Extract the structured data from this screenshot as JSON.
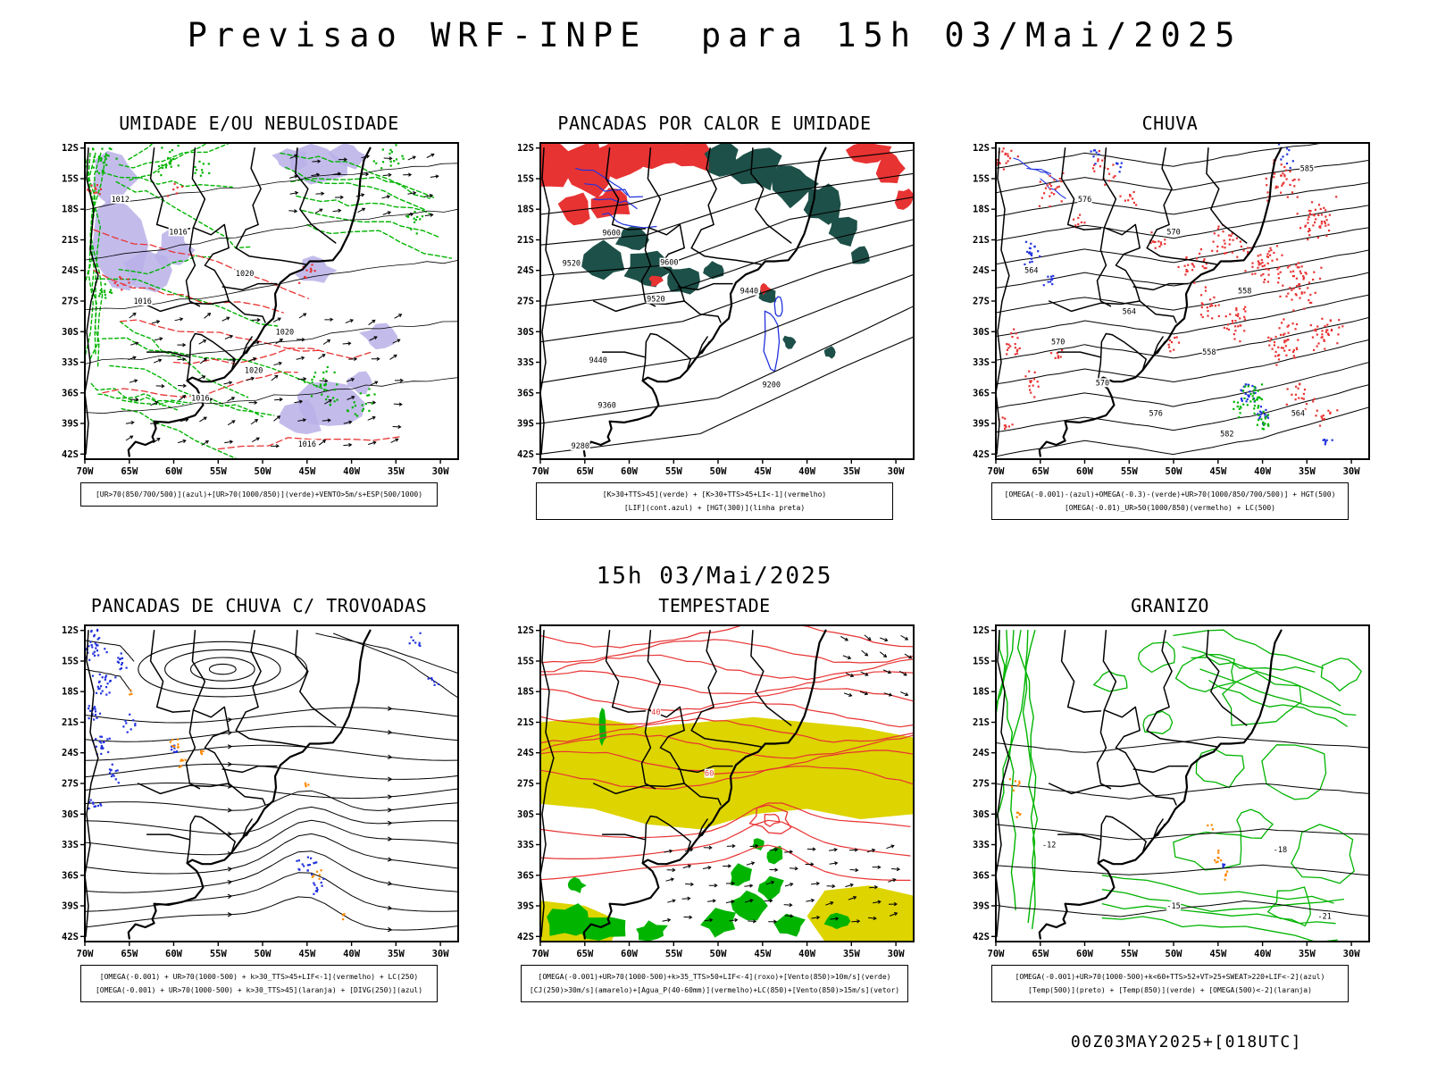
{
  "page": {
    "title": "Previsao WRF-INPE  para 15h 03/Mai/2025",
    "mid_caption": "15h 03/Mai/2025",
    "footer": "00Z03MAY2025+[018UTC]"
  },
  "axes": {
    "lat_labels": [
      "12S",
      "15S",
      "18S",
      "21S",
      "24S",
      "27S",
      "30S",
      "33S",
      "36S",
      "39S",
      "42S"
    ],
    "lon_labels": [
      "70W",
      "65W",
      "60W",
      "55W",
      "50W",
      "45W",
      "40W",
      "35W",
      "30W"
    ]
  },
  "palette": {
    "green": "#00b400",
    "red": "#e83333",
    "blue": "#2233dd",
    "teal": "#1d5048",
    "yellow": "#ddd400",
    "orange": "#ff8800",
    "lavender": "#b9b0e8",
    "black": "#000000"
  },
  "panels": [
    {
      "id": "umidade",
      "title": "UMIDADE E/OU NEBULOSIDADE",
      "caption_lines": [
        "[UR>70(850/700/500)](azul)+[UR>70(1000/850)](verde)+VENTO>5m/s+ESP(500/1000)"
      ],
      "contour_labels": [
        "1012",
        "1016",
        "1016",
        "1020",
        "1020",
        "1020",
        "1016",
        "1016"
      ]
    },
    {
      "id": "pancadas-calor",
      "title": "PANCADAS POR CALOR E UMIDADE",
      "caption_lines": [
        "[K>30+TTS>45](verde) + [K>30+TTS>45+LI<-1](vermelho)",
        "[LIF](cont.azul) + [HGT(300)](linha preta)"
      ],
      "contour_labels": [
        "9600",
        "9600",
        "9520",
        "9520",
        "9440",
        "9440",
        "9360",
        "9280",
        "9200"
      ]
    },
    {
      "id": "chuva",
      "title": "CHUVA",
      "caption_lines": [
        "[OMEGA(-0.001)-(azul)+OMEGA(-0.3)-(verde)+UR>70(1000/850/700/500)] + HGT(500)",
        "[OMEGA(-0.01)_UR>50(1000/850)(vermelho) + LC(500)"
      ],
      "contour_labels": [
        "585",
        "576",
        "570",
        "564",
        "558",
        "564",
        "570",
        "558",
        "570",
        "576",
        "582",
        "564"
      ]
    },
    {
      "id": "trovoadas",
      "title": "PANCADAS DE CHUVA C/ TROVOADAS",
      "caption_lines": [
        "[OMEGA(-0.001) + UR>70(1000-500) + k>30_TTS>45+LIF<-1](vermelho) + LC(250)",
        "[OMEGA(-0.001) + UR>70(1000-500) + k>30_TTS>45](laranja) + [DIVG(250)](azul)"
      ],
      "contour_labels": []
    },
    {
      "id": "tempestade",
      "title": "TEMPESTADE",
      "caption_lines": [
        "[OMEGA(-0.001)+UR>70(1000-500)+k>35_TTS>50+LIF<-4](roxo)+[Vento(850)>10m/s](verde)",
        "[CJ(250)>30m/s](amarelo)+[Agua_P(40-60mm)](vermelho)+LC(850)+[Vento(850)>15m/s](vetor)"
      ],
      "contour_labels": [
        "40",
        "60"
      ]
    },
    {
      "id": "granizo",
      "title": "GRANIZO",
      "caption_lines": [
        "[OMEGA(-0.001)+UR>70(1000-500)+k<60+TTS>52+VT>25+SWEAT>220+LIF<-2](azul)",
        "[Temp(500)](preto) + [Temp(850)](verde) + [OMEGA(500)<-2](laranja)"
      ],
      "contour_labels": [
        "-12",
        "-15",
        "-18",
        "-21"
      ]
    }
  ]
}
